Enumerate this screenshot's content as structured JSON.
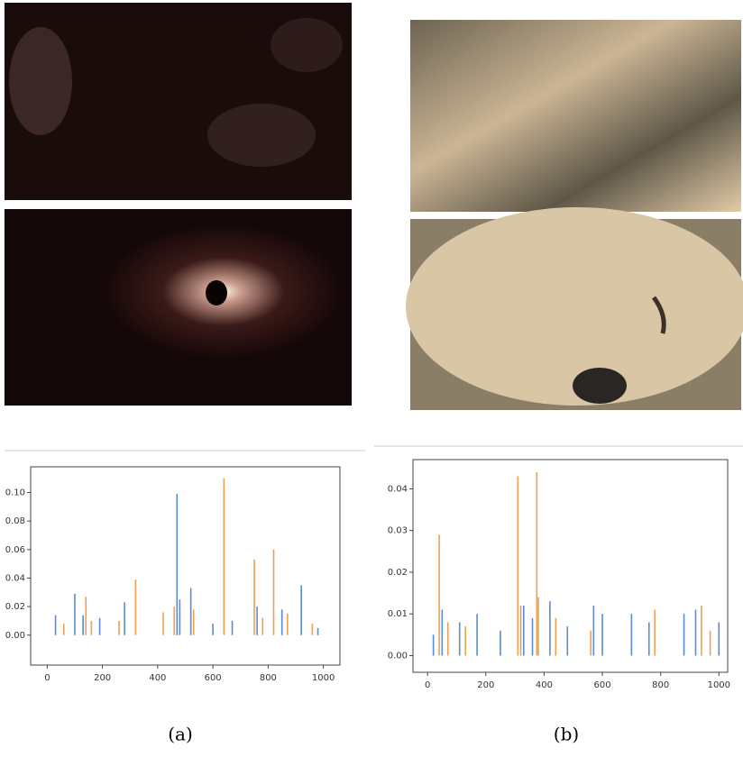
{
  "chart_data": [
    {
      "type": "bar",
      "caption": "(a)",
      "xlim": [
        -60,
        1060
      ],
      "ylim": [
        -0.021,
        0.118
      ],
      "xticks": [
        0,
        200,
        400,
        600,
        800,
        1000
      ],
      "yticks": [
        {
          "value": 0,
          "label": "0.00"
        },
        {
          "value": 0.02,
          "label": "0.02"
        },
        {
          "value": 0.04,
          "label": "0.04"
        },
        {
          "value": 0.06,
          "label": "0.06"
        },
        {
          "value": 0.08,
          "label": "0.08"
        },
        {
          "value": 0.1,
          "label": "0.10"
        }
      ],
      "series": [
        {
          "color": "#5b8bd0",
          "x": [
            30,
            100,
            130,
            190,
            280,
            470,
            480,
            520,
            600,
            670,
            760,
            850,
            920,
            980
          ],
          "values": [
            0.014,
            0.029,
            0.014,
            0.012,
            0.023,
            0.099,
            0.025,
            0.033,
            0.008,
            0.01,
            0.02,
            0.018,
            0.035,
            0.005
          ]
        },
        {
          "color": "#f0a050",
          "x": [
            60,
            140,
            160,
            260,
            320,
            420,
            460,
            530,
            640,
            750,
            780,
            820,
            870,
            960
          ],
          "values": [
            0.008,
            0.027,
            0.01,
            0.01,
            0.039,
            0.016,
            0.02,
            0.018,
            0.11,
            0.053,
            0.012,
            0.06,
            0.015,
            0.008
          ]
        }
      ]
    },
    {
      "type": "bar",
      "caption": "(b)",
      "xlim": [
        -50,
        1030
      ],
      "ylim": [
        -0.004,
        0.047
      ],
      "xticks": [
        0,
        200,
        400,
        600,
        800,
        1000
      ],
      "yticks": [
        {
          "value": 0,
          "label": "0.00"
        },
        {
          "value": 0.01,
          "label": "0.01"
        },
        {
          "value": 0.02,
          "label": "0.02"
        },
        {
          "value": 0.03,
          "label": "0.03"
        },
        {
          "value": 0.04,
          "label": "0.04"
        }
      ],
      "series": [
        {
          "color": "#5b8bd0",
          "x": [
            20,
            50,
            110,
            170,
            250,
            330,
            360,
            420,
            480,
            570,
            600,
            700,
            760,
            880,
            920,
            1000
          ],
          "values": [
            0.005,
            0.011,
            0.008,
            0.01,
            0.006,
            0.012,
            0.009,
            0.013,
            0.007,
            0.012,
            0.01,
            0.01,
            0.008,
            0.01,
            0.011,
            0.008
          ]
        },
        {
          "color": "#f0a050",
          "x": [
            40,
            70,
            130,
            310,
            320,
            375,
            380,
            440,
            560,
            780,
            940,
            970
          ],
          "values": [
            0.029,
            0.008,
            0.007,
            0.043,
            0.012,
            0.044,
            0.014,
            0.009,
            0.006,
            0.011,
            0.012,
            0.006
          ]
        }
      ]
    }
  ]
}
